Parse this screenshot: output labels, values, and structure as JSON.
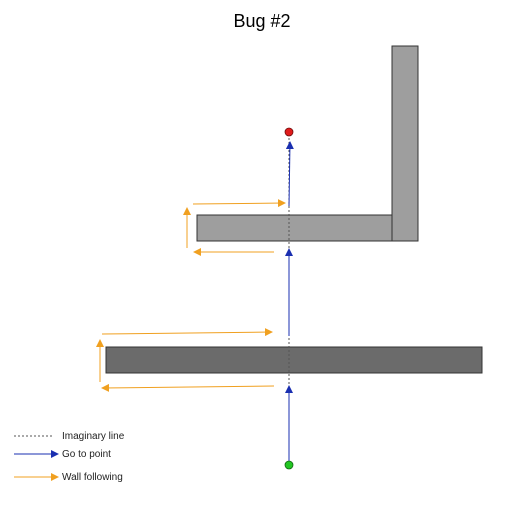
{
  "title": "Bug #2",
  "legend": {
    "imaginary_line": "Imaginary line",
    "go_to_point": "Go to point",
    "wall_following": "Wall following"
  },
  "colors": {
    "obstacle_light": "#9e9e9e",
    "obstacle_dark": "#6b6b6b",
    "obstacle_border": "#333333",
    "start_point": "#22c622",
    "goal_point": "#e01b1b",
    "go_to_point_arrow": "#1a2fb0",
    "wall_following_arrow": "#f0a020",
    "imaginary_line": "#555555"
  }
}
